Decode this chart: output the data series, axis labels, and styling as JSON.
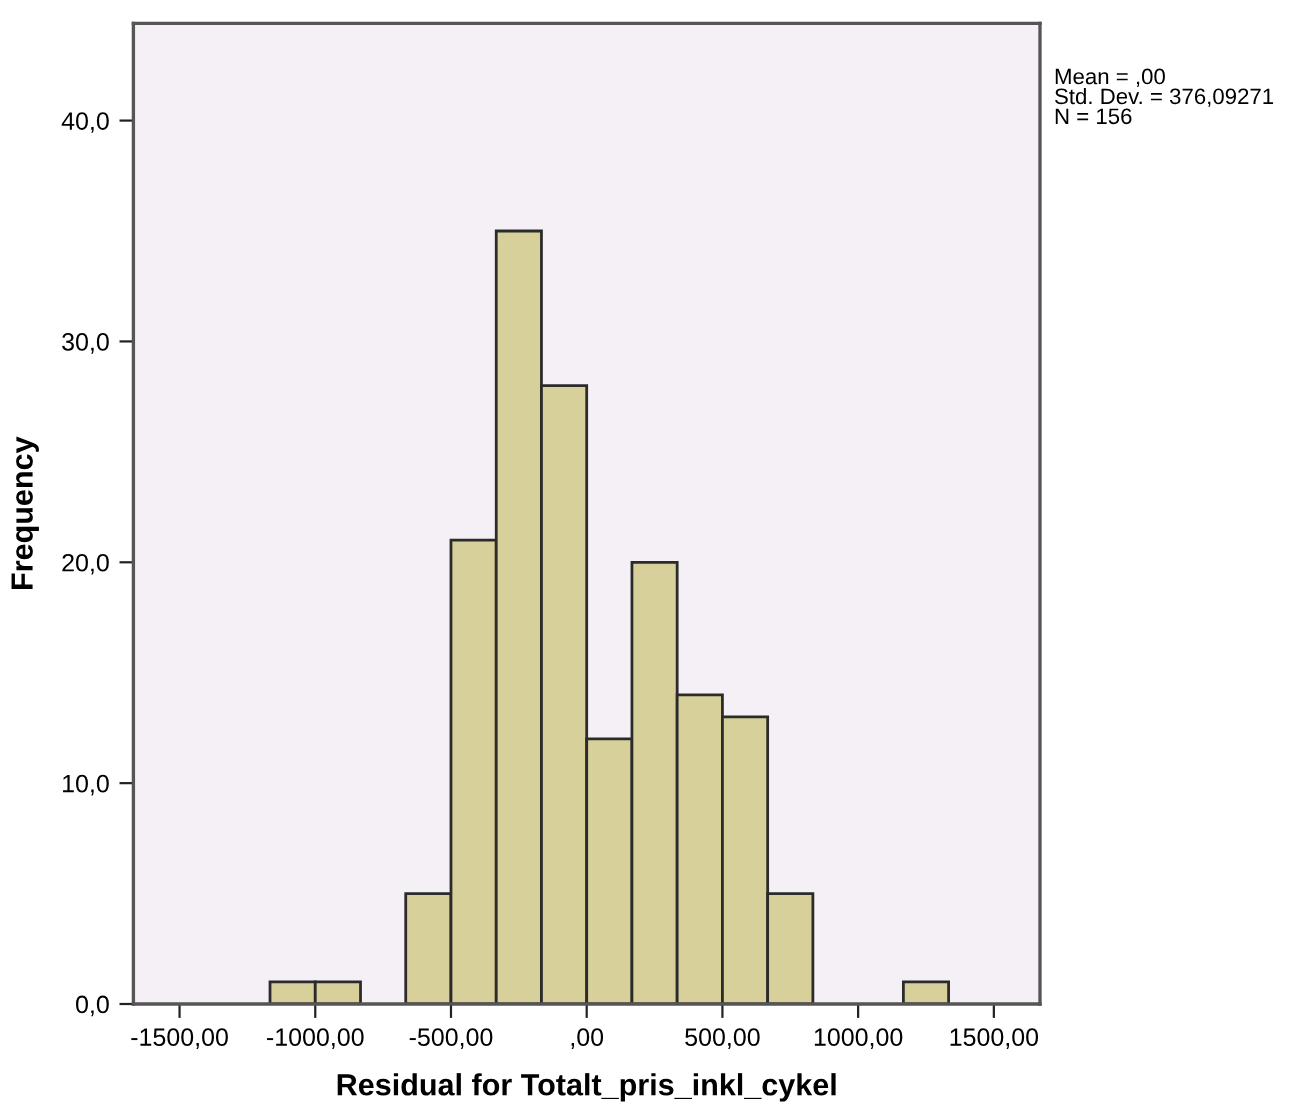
{
  "chart_data": {
    "type": "histogram",
    "xlabel": "Residual for Totalt_pris_inkl_cykel",
    "ylabel": "Frequency",
    "bins": [
      -1166.7,
      -1000,
      -833.3,
      -666.7,
      -500,
      -333.3,
      -166.7,
      0,
      166.7,
      333.3,
      500,
      666.7,
      833.3,
      1000,
      1166.7,
      1333.3
    ],
    "values": [
      1,
      1,
      0,
      5,
      21,
      35,
      28,
      12,
      20,
      14,
      13,
      5,
      0,
      0,
      1
    ],
    "color": "#d8d09a",
    "xlim": [
      -1670,
      1670
    ],
    "xticks": [
      {
        "value": -1500,
        "label": "-1500,00"
      },
      {
        "value": -1000,
        "label": "-1000,00"
      },
      {
        "value": -500,
        "label": "-500,00"
      },
      {
        "value": 0,
        "label": ",00"
      },
      {
        "value": 500,
        "label": "500,00"
      },
      {
        "value": 1000,
        "label": "1000,00"
      },
      {
        "value": 1500,
        "label": "1500,00"
      }
    ],
    "ylim": [
      0,
      44.4
    ],
    "yticks": [
      {
        "value": 0,
        "label": "0,0"
      },
      {
        "value": 10,
        "label": "10,0"
      },
      {
        "value": 20,
        "label": "20,0"
      },
      {
        "value": 30,
        "label": "30,0"
      },
      {
        "value": 40,
        "label": "40,0"
      }
    ],
    "annotations": [
      "Mean = ,00\nStd. Dev. = 376,09271\nN = 156"
    ],
    "grid": false,
    "legend": false
  }
}
